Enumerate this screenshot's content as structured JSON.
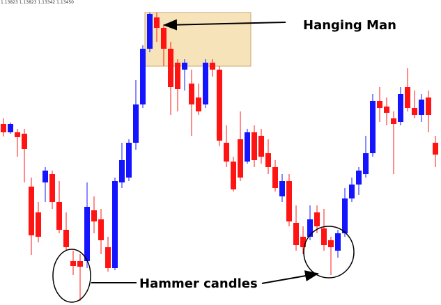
{
  "chart_data": {
    "type": "candlestick",
    "header": "1.13823 1.13823 1.13342 1.13450",
    "annotations": [
      "Hanging Man",
      "Hammer candles"
    ],
    "ylim": [
      0,
      440
    ],
    "up_color": "#1414ff",
    "down_color": "#ff1414",
    "open": [
      262,
      250,
      250,
      248,
      172,
      135,
      178,
      190,
      150,
      110,
      65,
      65,
      65,
      138,
      125,
      85,
      55,
      178,
      185,
      235,
      290,
      370,
      415,
      400,
      370,
      350,
      340,
      320,
      300,
      290,
      350,
      340,
      235,
      208,
      240,
      208,
      250,
      245,
      220,
      200,
      158,
      180,
      120,
      100,
      100,
      135,
      112,
      95,
      80,
      105,
      155,
      175,
      190,
      220,
      295,
      287,
      270,
      265,
      315,
      285,
      275,
      300,
      235
    ],
    "high": [
      270,
      264,
      255,
      255,
      185,
      150,
      200,
      195,
      180,
      135,
      80,
      75,
      178,
      158,
      140,
      100,
      185,
      235,
      240,
      325,
      375,
      422,
      422,
      405,
      380,
      355,
      355,
      340,
      320,
      355,
      355,
      345,
      260,
      215,
      280,
      255,
      260,
      255,
      240,
      210,
      190,
      190,
      145,
      115,
      145,
      145,
      140,
      100,
      110,
      170,
      185,
      200,
      245,
      305,
      315,
      300,
      280,
      315,
      342,
      310,
      305,
      310,
      245
    ],
    "low": [
      244,
      248,
      215,
      178,
      74,
      92,
      150,
      140,
      105,
      80,
      45,
      8,
      55,
      105,
      75,
      50,
      52,
      170,
      180,
      225,
      285,
      365,
      380,
      345,
      275,
      280,
      310,
      245,
      275,
      285,
      330,
      230,
      200,
      165,
      180,
      205,
      200,
      205,
      190,
      165,
      150,
      115,
      80,
      75,
      95,
      105,
      80,
      45,
      70,
      100,
      150,
      160,
      185,
      215,
      265,
      260,
      190,
      260,
      280,
      270,
      265,
      250,
      200
    ],
    "close": [
      250,
      262,
      243,
      226,
      102,
      100,
      195,
      150,
      110,
      85,
      58,
      57,
      143,
      122,
      95,
      55,
      180,
      210,
      235,
      290,
      370,
      420,
      400,
      370,
      315,
      312,
      350,
      290,
      280,
      350,
      340,
      238,
      208,
      168,
      185,
      250,
      210,
      215,
      200,
      170,
      180,
      122,
      88,
      85,
      125,
      115,
      88,
      85,
      105,
      155,
      175,
      195,
      220,
      295,
      285,
      278,
      262,
      305,
      285,
      275,
      297,
      275,
      218
    ]
  }
}
